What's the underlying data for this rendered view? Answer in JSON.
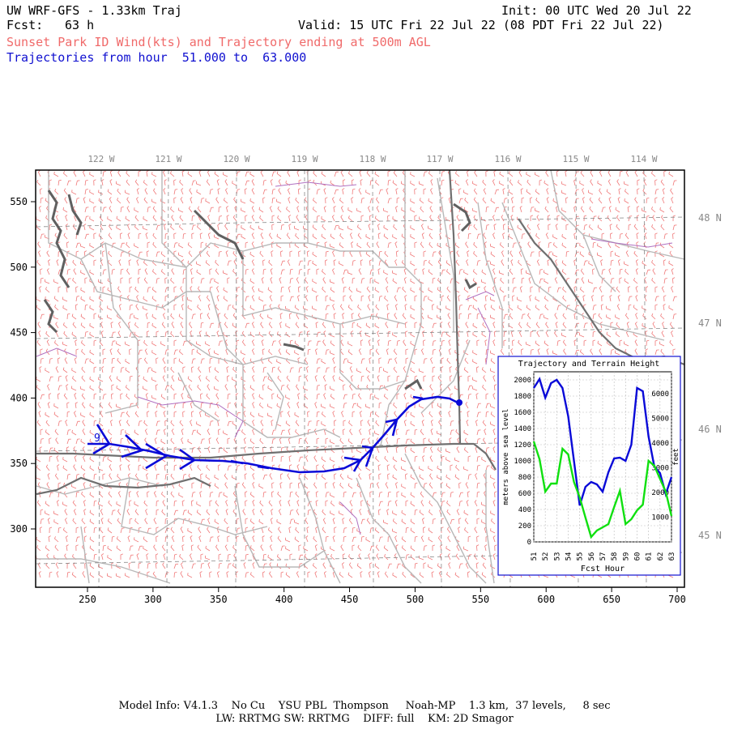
{
  "header": {
    "title": "UW WRF-GFS - 1.33km Traj",
    "init": "Init: 00 UTC Wed 20 Jul 22",
    "fcst_label": "Fcst:",
    "fcst_value": "63 h",
    "valid": "Valid: 15 UTC Fri 22 Jul 22 (08 PDT Fri 22 Jul 22)",
    "subtitle": "Sunset Park ID Wind(kts) and Trajectory ending at 500m AGL",
    "traj_range": "Trajectories from hour  51.000 to  63.000"
  },
  "map": {
    "lon_labels": [
      "122 W",
      "121 W",
      "120 W",
      "119 W",
      "118 W",
      "117 W",
      "116 W",
      "115 W",
      "114 W"
    ],
    "lat_labels": [
      "48 N",
      "47 N",
      "46 N",
      "45 N"
    ],
    "x_ticks": [
      "250",
      "300",
      "350",
      "400",
      "450",
      "500",
      "550",
      "600",
      "650",
      "700"
    ],
    "y_ticks": [
      "550",
      "500",
      "450",
      "400",
      "350",
      "300"
    ],
    "x_ticks_values": [
      250,
      300,
      350,
      400,
      450,
      500,
      550,
      600,
      650,
      700
    ],
    "y_ticks_values": [
      550,
      500,
      450,
      400,
      350,
      300
    ],
    "trajectory_start_label": "9",
    "colors": {
      "wind": "#f07878",
      "trajectory": "#0a0ad8",
      "county": "#b0b0b0",
      "state": "#707070",
      "lake": "#606060"
    }
  },
  "inset": {
    "title": "Trajectory and Terrain Height",
    "ylabel_left": "meters above sea level",
    "ylabel_right": "feet",
    "xlabel": "Fcst Hour",
    "chart_data": {
      "type": "line",
      "x": [
        51,
        51.5,
        52,
        52.5,
        53,
        53.5,
        54,
        54.5,
        55,
        55.5,
        56,
        56.5,
        57,
        57.5,
        58,
        58.5,
        59,
        59.5,
        60,
        60.5,
        61,
        61.5,
        62,
        62.5,
        63
      ],
      "xlim": [
        51,
        63
      ],
      "ylim": [
        0,
        2100
      ],
      "y_ticks": [
        0,
        200,
        400,
        600,
        800,
        1000,
        1200,
        1400,
        1600,
        1800,
        2000
      ],
      "feet_ticks": [
        1000,
        2000,
        3000,
        4000,
        5000,
        6000
      ],
      "x_tick_labels": [
        "51",
        "52",
        "53",
        "54",
        "55",
        "56",
        "57",
        "58",
        "59",
        "60",
        "61",
        "62",
        "63"
      ],
      "series": [
        {
          "color": "#0a0ad8",
          "values": [
            1900,
            2010,
            1780,
            1960,
            2000,
            1900,
            1550,
            1000,
            450,
            680,
            740,
            710,
            620,
            860,
            1030,
            1040,
            1000,
            1200,
            1900,
            1860,
            1300,
            930,
            850,
            590,
            800
          ]
        },
        {
          "color": "#10e010",
          "values": [
            1240,
            1020,
            620,
            720,
            720,
            1150,
            1080,
            740,
            550,
            300,
            60,
            140,
            180,
            220,
            430,
            630,
            220,
            280,
            390,
            460,
            1000,
            940,
            780,
            620,
            320
          ]
        }
      ]
    }
  },
  "footer": {
    "line1": "Model Info: V4.1.3    No Cu    YSU PBL  Thompson     Noah-MP    1.3 km,  37 levels,     8 sec",
    "line2": "LW: RRTMG SW: RRTMG    DIFF: full    KM: 2D Smagor"
  }
}
